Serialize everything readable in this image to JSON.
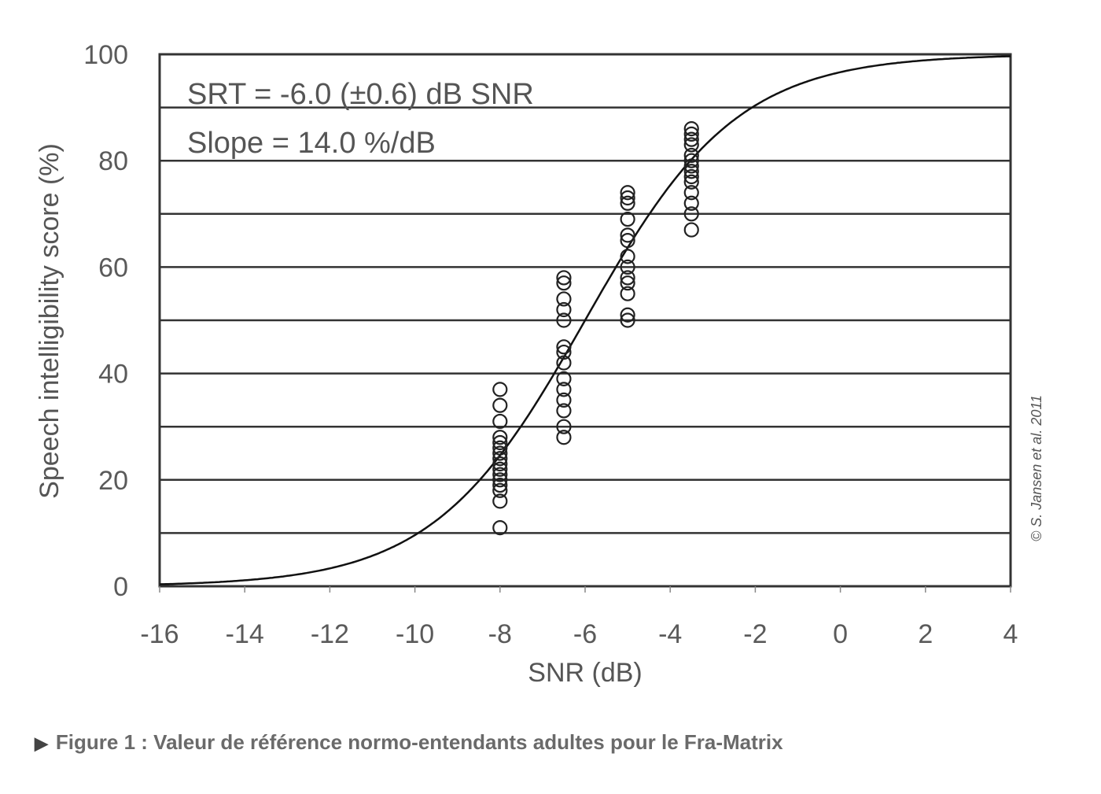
{
  "chart_data": {
    "type": "scatter",
    "xlabel": "SNR (dB)",
    "ylabel": "Speech intelligibility score (%)",
    "xlim": [
      -16,
      4
    ],
    "ylim": [
      0,
      100
    ],
    "xticks": [
      -16,
      -14,
      -12,
      -10,
      -8,
      -6,
      -4,
      -2,
      0,
      2,
      4
    ],
    "yticks": [
      0,
      20,
      40,
      60,
      80,
      100
    ],
    "grid": "horizontal lines every 10%",
    "annotations": [
      "SRT = -6.0 (±0.6) dB SNR",
      "Slope = 14.0 %/dB"
    ],
    "credit": "© S. Jansen et al. 2011",
    "fit_curve": {
      "form": "logistic",
      "srt": -6.0,
      "slope": 14.0
    },
    "series": [
      {
        "x": -8,
        "y": [
          37,
          34,
          31,
          28,
          27,
          26,
          25,
          24,
          23,
          22,
          21,
          20,
          19,
          18,
          16,
          11
        ]
      },
      {
        "x": -6.5,
        "y": [
          58,
          57,
          54,
          52,
          50,
          45,
          44,
          42,
          39,
          37,
          35,
          33,
          30,
          28
        ]
      },
      {
        "x": -5,
        "y": [
          74,
          73,
          72,
          69,
          66,
          65,
          62,
          60,
          58,
          57,
          55,
          51,
          50
        ]
      },
      {
        "x": -3.5,
        "y": [
          86,
          85,
          84,
          83,
          81,
          80,
          79,
          78,
          77,
          76,
          74,
          72,
          70,
          67
        ]
      }
    ]
  },
  "caption": {
    "marker": "▶",
    "text": "Figure 1 : Valeur de référence normo-entendants adultes pour le Fra-Matrix"
  }
}
